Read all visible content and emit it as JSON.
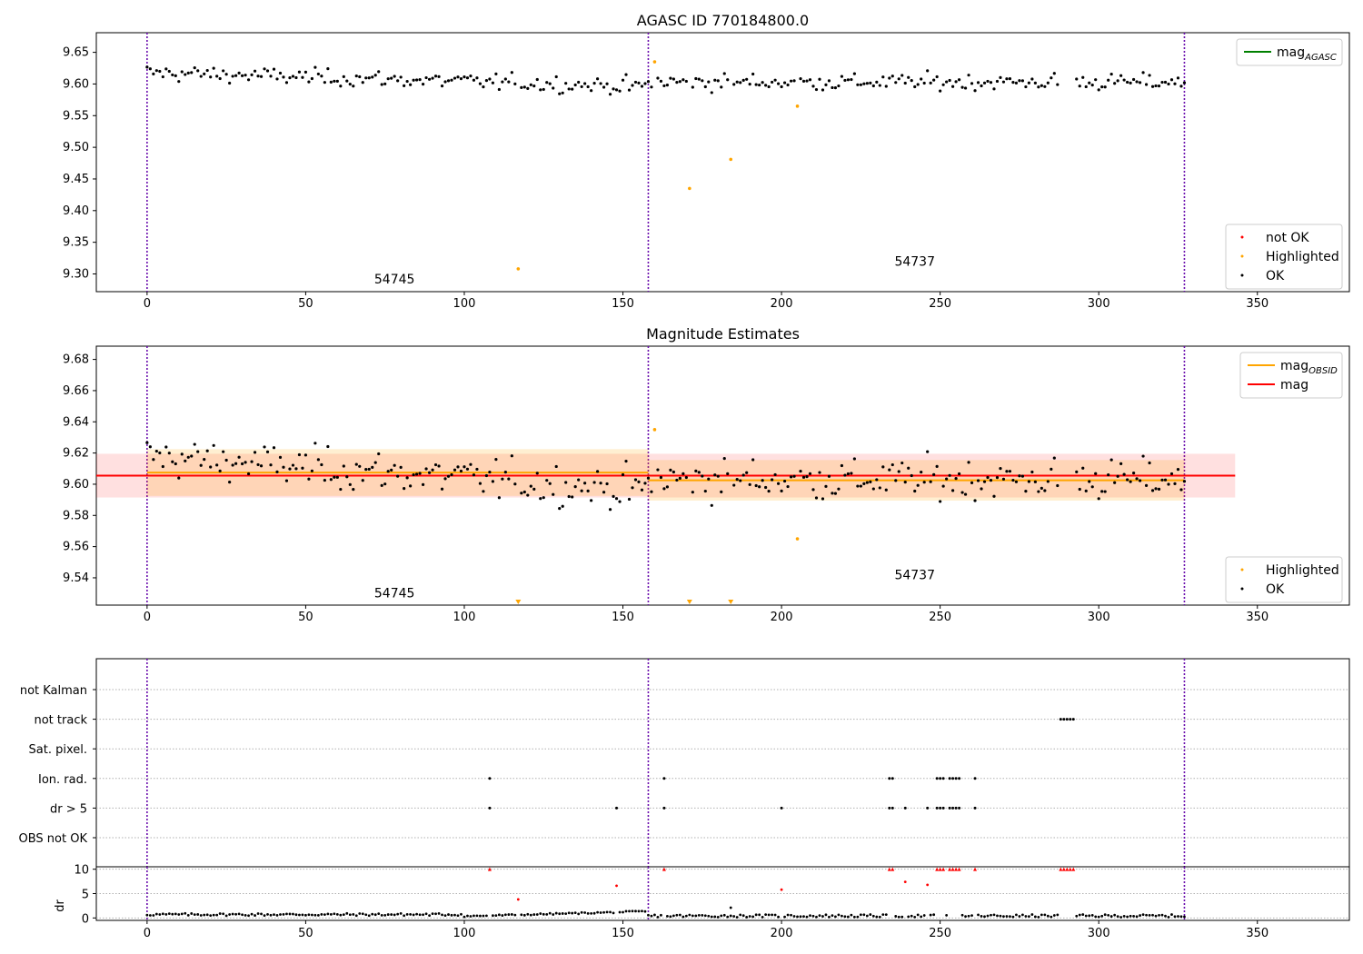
{
  "chart_data": [
    {
      "type": "scatter",
      "title": "AGASC ID 770184800.0",
      "xlim": [
        -16,
        379
      ],
      "ylim": [
        9.272,
        9.681
      ],
      "xticks": [
        0,
        50,
        100,
        150,
        200,
        250,
        300,
        350
      ],
      "xtick_labels": [
        "0",
        "50",
        "100",
        "150",
        "200",
        "250",
        "300",
        "350"
      ],
      "yticks": [
        9.3,
        9.35,
        9.4,
        9.45,
        9.5,
        9.55,
        9.6,
        9.65
      ],
      "ytick_labels": [
        "9.30",
        "9.35",
        "9.40",
        "9.45",
        "9.50",
        "9.55",
        "9.60",
        "9.65"
      ],
      "vlines": [
        0,
        158,
        327
      ],
      "annotations": [
        {
          "text": "54745",
          "x": 78,
          "y": 9.285
        },
        {
          "text": "54737",
          "x": 242,
          "y": 9.313
        }
      ],
      "legends": [
        {
          "placement": "upper right",
          "entries": [
            {
              "label": "mag",
              "sub": "AGASC",
              "color": "#008000",
              "kind": "line"
            }
          ]
        },
        {
          "placement": "lower right",
          "entries": [
            {
              "label": "not OK",
              "color": "#ff0000",
              "kind": "point"
            },
            {
              "label": "Highlighted",
              "color": "#ffa500",
              "kind": "point"
            },
            {
              "label": "OK",
              "color": "#000000",
              "kind": "point"
            }
          ]
        }
      ],
      "highlighted": [
        {
          "x": 117,
          "y": 9.308
        },
        {
          "x": 160,
          "y": 9.635
        },
        {
          "x": 171,
          "y": 9.435
        },
        {
          "x": 184,
          "y": 9.481
        },
        {
          "x": 205,
          "y": 9.565
        }
      ]
    },
    {
      "type": "scatter",
      "title": "Magnitude Estimates",
      "xlim": [
        -16,
        379
      ],
      "ylim": [
        9.5225,
        9.6885
      ],
      "xticks": [
        0,
        50,
        100,
        150,
        200,
        250,
        300,
        350
      ],
      "xtick_labels": [
        "0",
        "50",
        "100",
        "150",
        "200",
        "250",
        "300",
        "350"
      ],
      "yticks": [
        9.54,
        9.56,
        9.58,
        9.6,
        9.62,
        9.64,
        9.66,
        9.68
      ],
      "ytick_labels": [
        "9.54",
        "9.56",
        "9.58",
        "9.60",
        "9.62",
        "9.64",
        "9.66",
        "9.68"
      ],
      "vlines": [
        0,
        158,
        327
      ],
      "annotations": [
        {
          "text": "54745",
          "x": 78,
          "y": 9.5275
        },
        {
          "text": "54737",
          "x": 242,
          "y": 9.539
        }
      ],
      "legends": [
        {
          "placement": "upper right",
          "entries": [
            {
              "label": "mag",
              "sub": "OBSID",
              "color": "#ffa500",
              "kind": "line"
            },
            {
              "label": "mag",
              "color": "#ff0000",
              "kind": "line"
            }
          ]
        },
        {
          "placement": "lower right",
          "entries": [
            {
              "label": "Highlighted",
              "color": "#ffa500",
              "kind": "point"
            },
            {
              "label": "OK",
              "color": "#000000",
              "kind": "point"
            }
          ]
        }
      ],
      "mag": {
        "value": 9.6055,
        "band": [
          9.5915,
          9.6195
        ],
        "x": [
          -16,
          343
        ]
      },
      "mag_obsid": [
        {
          "x": [
            0,
            158
          ],
          "value": 9.6075,
          "band": [
            9.5925,
            9.6225
          ]
        },
        {
          "x": [
            158,
            327
          ],
          "value": 9.6025,
          "band": [
            9.5895,
            9.6155
          ]
        }
      ],
      "highlighted": [
        {
          "x": 160,
          "y": 9.635
        },
        {
          "x": 205,
          "y": 9.565
        }
      ],
      "out_of_range_markers": [
        117,
        171,
        184
      ]
    },
    {
      "type": "scatter",
      "xlim": [
        -16,
        379
      ],
      "categories": [
        "not Kalman",
        "not track",
        "Sat. pixel.",
        "Ion. rad.",
        "dr > 5",
        "OBS not OK"
      ],
      "vlines": [
        0,
        158,
        327
      ],
      "flags": {
        "not track": [
          288,
          289,
          290,
          291,
          292
        ],
        "Ion. rad.": [
          108,
          163,
          234,
          235,
          249,
          250,
          251,
          253,
          254,
          255,
          256,
          261
        ],
        "dr > 5": [
          108,
          148,
          163,
          200,
          234,
          235,
          239,
          246,
          249,
          250,
          251,
          253,
          254,
          255,
          256,
          261
        ]
      }
    },
    {
      "type": "scatter",
      "ylabel": "dr",
      "xlim": [
        -16,
        379
      ],
      "ylim": [
        -0.5,
        10.5
      ],
      "xticks": [
        0,
        50,
        100,
        150,
        200,
        250,
        300,
        350
      ],
      "xtick_labels": [
        "0",
        "50",
        "100",
        "150",
        "200",
        "250",
        "300",
        "350"
      ],
      "yticks": [
        0,
        5,
        10
      ],
      "ytick_labels": [
        "0",
        "5",
        "10"
      ],
      "vlines": [
        0,
        158,
        327
      ],
      "not_ok": [
        {
          "x": 108,
          "y": 10
        },
        {
          "x": 117,
          "y": 3.8
        },
        {
          "x": 148,
          "y": 6.6
        },
        {
          "x": 163,
          "y": 10
        },
        {
          "x": 200,
          "y": 5.8
        },
        {
          "x": 234,
          "y": 10
        },
        {
          "x": 235,
          "y": 10
        },
        {
          "x": 239,
          "y": 7.4
        },
        {
          "x": 246,
          "y": 6.8
        },
        {
          "x": 249,
          "y": 10
        },
        {
          "x": 250,
          "y": 10
        },
        {
          "x": 251,
          "y": 10
        },
        {
          "x": 253,
          "y": 10
        },
        {
          "x": 254,
          "y": 10
        },
        {
          "x": 255,
          "y": 10
        },
        {
          "x": 256,
          "y": 10
        },
        {
          "x": 261,
          "y": 10
        },
        {
          "x": 288,
          "y": 10
        },
        {
          "x": 289,
          "y": 10
        },
        {
          "x": 290,
          "y": 10
        },
        {
          "x": 291,
          "y": 10
        },
        {
          "x": 292,
          "y": 10
        }
      ],
      "ok_extra": [
        {
          "x": 184,
          "y": 2.1
        }
      ]
    }
  ]
}
